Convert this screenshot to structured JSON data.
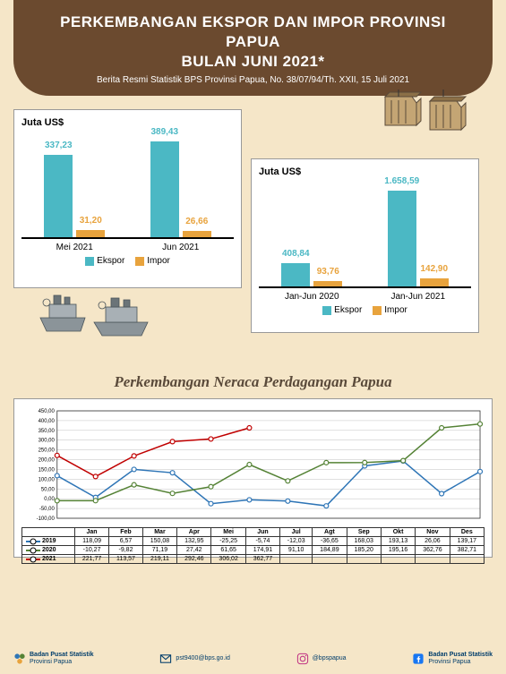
{
  "header": {
    "title_line1": "PERKEMBANGAN EKSPOR DAN IMPOR PROVINSI PAPUA",
    "title_line2": "BULAN JUNI 2021*",
    "subtitle": "Berita Resmi Statistik BPS Provinsi Papua, No. 38/07/94/Th. XXII, 15 Juli 2021"
  },
  "chart1": {
    "ylabel": "Juta US$",
    "categories": [
      "Mei 2021",
      "Jun 2021"
    ],
    "ekspor": [
      337.23,
      389.43
    ],
    "impor": [
      31.2,
      26.66
    ],
    "ekspor_labels": [
      "337,23",
      "389,43"
    ],
    "impor_labels": [
      "31,20",
      "26,66"
    ],
    "ekspor_color": "#4bb8c4",
    "impor_color": "#e8a33d",
    "ymax": 400,
    "legend_ekspor": "Ekspor",
    "legend_impor": "Impor"
  },
  "chart2": {
    "ylabel": "Juta US$",
    "categories": [
      "Jan-Jun 2020",
      "Jan-Jun 2021"
    ],
    "ekspor": [
      408.84,
      1658.59
    ],
    "impor": [
      93.76,
      142.9
    ],
    "ekspor_labels": [
      "408,84",
      "1.658,59"
    ],
    "impor_labels": [
      "93,76",
      "142,90"
    ],
    "ekspor_color": "#4bb8c4",
    "impor_color": "#e8a33d",
    "ymax": 1700,
    "legend_ekspor": "Ekspor",
    "legend_impor": "Impor"
  },
  "section_title": "Perkembangan Neraca Perdagangan Papua",
  "line_chart": {
    "months": [
      "Jan",
      "Feb",
      "Mar",
      "Apr",
      "Mei",
      "Jun",
      "Jul",
      "Agt",
      "Sep",
      "Okt",
      "Nov",
      "Des"
    ],
    "ylim": [
      -100,
      450
    ],
    "ytick_step": 50,
    "yticks": [
      "450,00",
      "400,00",
      "350,00",
      "300,00",
      "250,00",
      "200,00",
      "150,00",
      "100,00",
      "50,00",
      "0,00",
      "-50,00",
      "-100,00"
    ],
    "series": [
      {
        "year": "2019",
        "color": "#2e75b6",
        "values": [
          118.09,
          6.57,
          150.08,
          132.95,
          -25.25,
          -5.74,
          -12.03,
          -36.65,
          168.03,
          193.13,
          26.06,
          139.17
        ],
        "labels": [
          "118,09",
          "6,57",
          "150,08",
          "132,95",
          "-25,25",
          "-5,74",
          "-12,03",
          "-36,65",
          "168,03",
          "193,13",
          "26,06",
          "139,17"
        ]
      },
      {
        "year": "2020",
        "color": "#548235",
        "values": [
          -10.27,
          -9.82,
          71.19,
          27.42,
          61.65,
          174.91,
          91.1,
          184.89,
          185.2,
          195.16,
          362.76,
          382.71
        ],
        "labels": [
          "-10,27",
          "-9,82",
          "71,19",
          "27,42",
          "61,65",
          "174,91",
          "91,10",
          "184,89",
          "185,20",
          "195,16",
          "362,76",
          "382,71"
        ]
      },
      {
        "year": "2021",
        "color": "#c00000",
        "values": [
          221.77,
          113.57,
          219.11,
          292.46,
          306.02,
          362.77
        ],
        "labels": [
          "221,77",
          "113,57",
          "219,11",
          "292,46",
          "306,02",
          "362,77"
        ]
      }
    ],
    "grid_color": "#c0c0c0",
    "background_color": "#ffffff"
  },
  "footer": {
    "org1_line1": "Badan Pusat Statistik",
    "org1_line2": "Provinsi Papua",
    "email": "pst9400@bps.go.id",
    "instagram": "@bpspapua",
    "facebook_line1": "Badan Pusat Statistik",
    "facebook_line2": "Provinsi Papua"
  }
}
